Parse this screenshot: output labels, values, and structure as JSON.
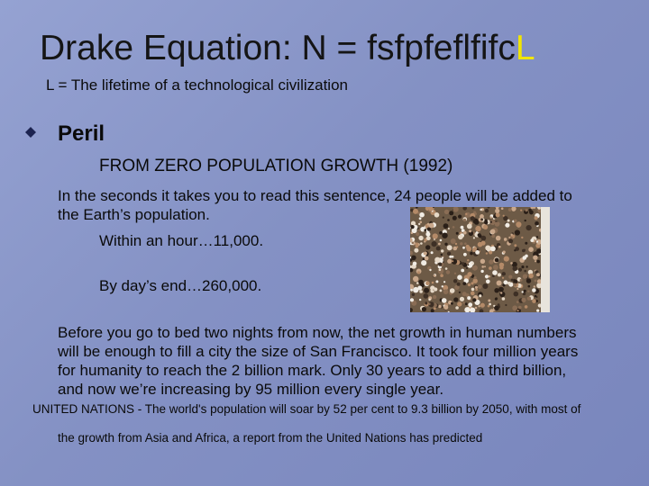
{
  "title": {
    "main": "Drake Equation: N = fsfpfeflfifc",
    "highlight": "L"
  },
  "subtitle": "L = The lifetime of a technological civilization",
  "bullet": "Peril",
  "source": "FROM ZERO POPULATION GROWTH (1992)",
  "paragraph_1": [
    "In the seconds it takes you to read this sentence, 24 people will be added to",
    "the Earth’s population."
  ],
  "hour": "Within an hour…11,000.",
  "day": "By day’s end…260,000.",
  "paragraph_2": [
    "Before you go to bed two nights from now, the net growth in human numbers",
    "will be enough to fill a city the size of San Francisco. It took four million years",
    "for humanity to reach the 2 billion mark.  Only 30 years to add a third billion,",
    "and now we’re increasing by 95 million every single year."
  ],
  "un_note": [
    "UNITED NATIONS - The world's population will soar by 52 per cent to 9.3 billion by 2050, with most of",
    "the growth from Asia and Africa, a report from the United Nations has predicted"
  ]
}
